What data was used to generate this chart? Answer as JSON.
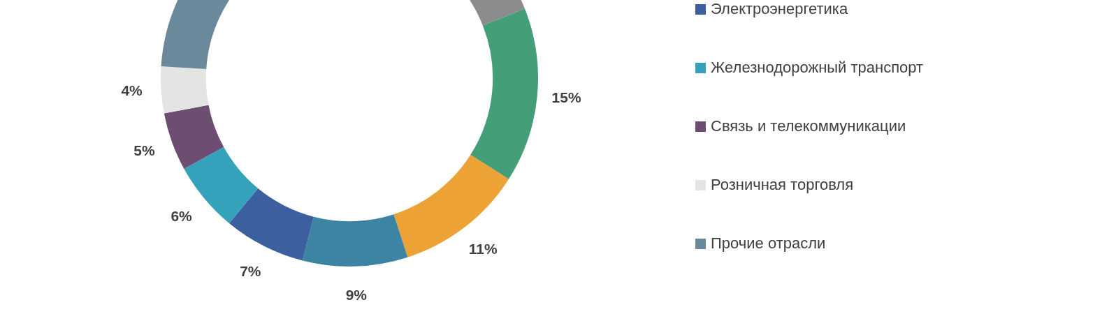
{
  "chart_data": {
    "type": "donut",
    "categories": [
      null,
      null,
      null,
      null,
      "Электроэнергетика",
      "Железнодорожный транспорт",
      "Связь и телекоммуникации",
      "Розничная торговля",
      "Прочие отрасли"
    ],
    "values": [
      19,
      15,
      11,
      9,
      7,
      6,
      5,
      4,
      24
    ],
    "colors": [
      "#8c8c8c",
      "#449e77",
      "#eca234",
      "#3c83a4",
      "#3b5f9f",
      "#35a2bc",
      "#6d4d72",
      "#e4e5e3",
      "#6a8a9c"
    ],
    "value_labels": [
      null,
      "15%",
      "11%",
      "9%",
      "7%",
      "6%",
      "5%",
      "4%",
      null
    ],
    "legend": "right"
  }
}
